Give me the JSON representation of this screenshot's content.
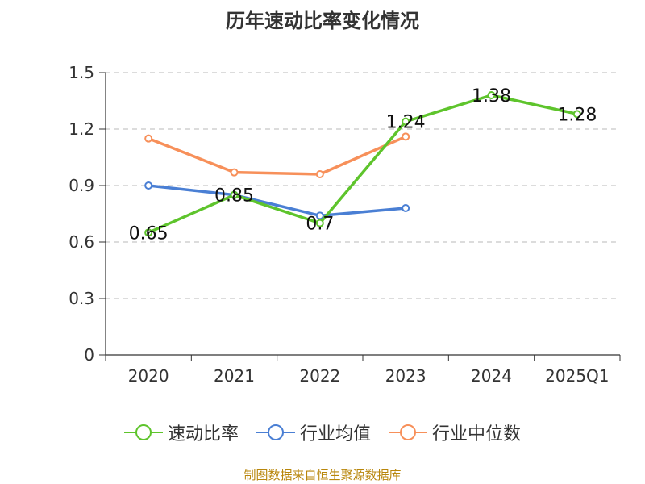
{
  "chart_data": {
    "type": "line",
    "title": "历年速动比率变化情况",
    "categories": [
      "2020",
      "2021",
      "2022",
      "2023",
      "2024",
      "2025Q1"
    ],
    "ylim": [
      0,
      1.5
    ],
    "yticks": [
      "0",
      "0.3",
      "0.6",
      "0.9",
      "1.2",
      "1.5"
    ],
    "ytick_values": [
      0,
      0.3,
      0.6,
      0.9,
      1.2,
      1.5
    ],
    "grid": "horizontal-dashed",
    "legend_position": "bottom",
    "series": [
      {
        "name": "速动比率",
        "color": "#5ec42c",
        "values": [
          0.65,
          0.85,
          0.7,
          1.24,
          1.38,
          1.28
        ],
        "show_labels": true,
        "labels": [
          "0.65",
          "0.85",
          "0.7",
          "1.24",
          "1.38",
          "1.28"
        ]
      },
      {
        "name": "行业均值",
        "color": "#4a7fd4",
        "values": [
          0.9,
          0.85,
          0.74,
          0.78,
          null,
          null
        ],
        "show_labels": false
      },
      {
        "name": "行业中位数",
        "color": "#f7905a",
        "values": [
          1.15,
          0.97,
          0.96,
          1.16,
          null,
          null
        ],
        "show_labels": false
      }
    ]
  },
  "source_note": "制图数据来自恒生聚源数据库"
}
